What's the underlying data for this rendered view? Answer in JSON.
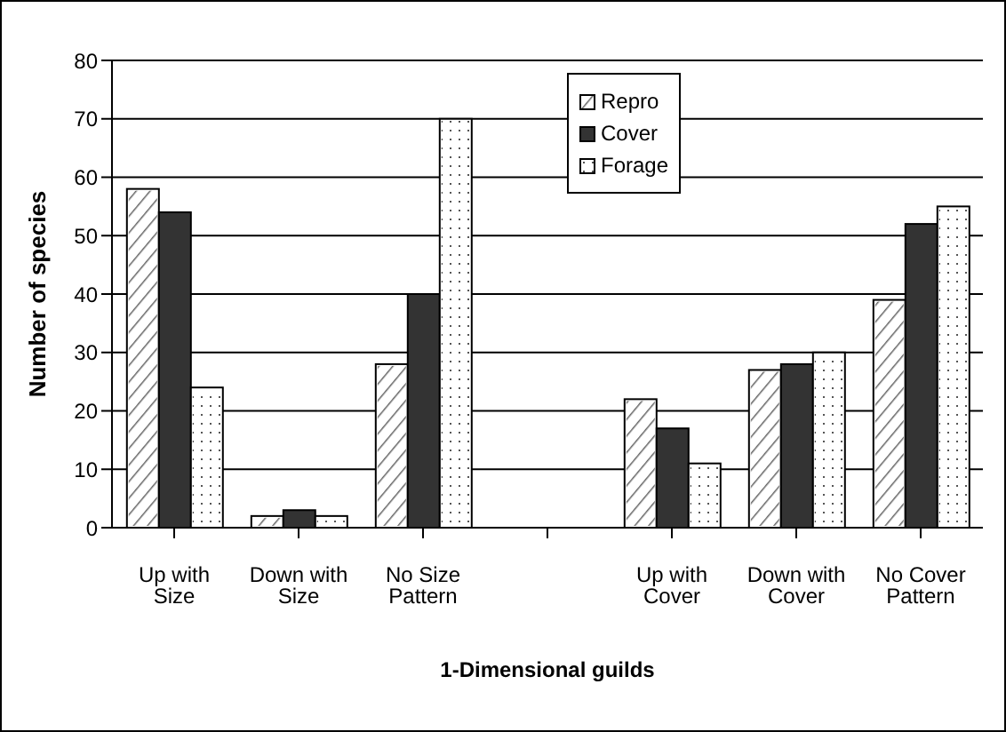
{
  "chart_data": {
    "type": "bar",
    "xlabel": "1-Dimensional guilds",
    "ylabel": "Number of species",
    "categories": [
      "Up with Size",
      "Down with Size",
      "No Size Pattern",
      null,
      "Up with Cover",
      "Down with Cover",
      "No Cover Pattern"
    ],
    "series": [
      {
        "name": "Repro",
        "color": "#ffffff",
        "values": [
          58,
          2,
          28,
          null,
          22,
          27,
          39
        ]
      },
      {
        "name": "Cover",
        "color": "#333333",
        "values": [
          54,
          3,
          40,
          null,
          17,
          28,
          52
        ]
      },
      {
        "name": "Forage",
        "color": "#ffffff",
        "values": [
          24,
          2,
          70,
          null,
          11,
          30,
          55
        ]
      }
    ],
    "ylim": [
      0,
      80
    ],
    "yticks": [
      0,
      10,
      20,
      30,
      40,
      50,
      60,
      70,
      80
    ],
    "grid": "y",
    "legend": "top"
  }
}
